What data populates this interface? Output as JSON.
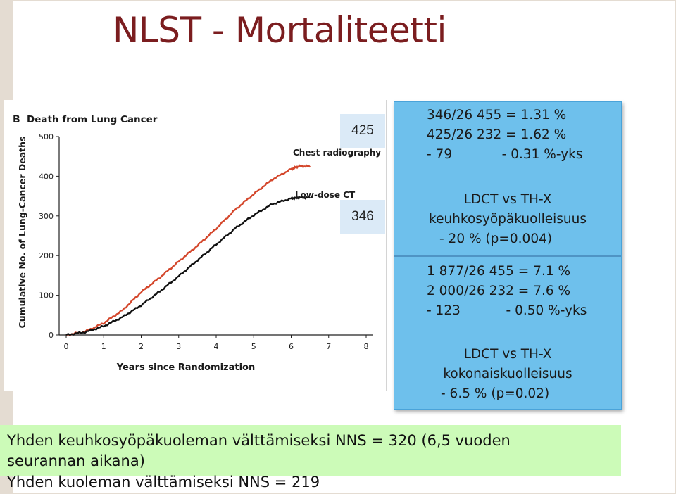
{
  "slide": {
    "title": "NLST - Mortaliteetti"
  },
  "chart": {
    "panel_letter": "B",
    "panel_title": "Death from Lung Cancer",
    "ylabel": "Cumulative No. of Lung-Cancer Deaths",
    "xlabel": "Years since Randomization",
    "yticks": [
      "0",
      "100",
      "200",
      "300",
      "400",
      "500"
    ],
    "xticks": [
      "0",
      "1",
      "2",
      "3",
      "4",
      "5",
      "6",
      "7",
      "8"
    ],
    "series_labels": [
      "Chest radiography",
      "Low-dose CT"
    ],
    "colors": {
      "chest_radiography": "#d4472c",
      "low_dose_ct": "#111111"
    }
  },
  "chart_data": {
    "type": "line",
    "title": "Death from Lung Cancer",
    "xlabel": "Years since Randomization",
    "ylabel": "Cumulative No. of Lung-Cancer Deaths",
    "xlim": [
      0,
      8
    ],
    "ylim": [
      0,
      500
    ],
    "legend": "end-of-line labels",
    "series": [
      {
        "name": "Chest radiography",
        "x": [
          0,
          0.5,
          1,
          1.5,
          2,
          2.5,
          3,
          3.5,
          4,
          4.5,
          5,
          5.5,
          6,
          6.2,
          6.5
        ],
        "y": [
          0,
          8,
          30,
          62,
          108,
          145,
          185,
          225,
          268,
          315,
          355,
          392,
          418,
          425,
          425
        ]
      },
      {
        "name": "Low-dose CT",
        "x": [
          0,
          0.5,
          1,
          1.5,
          2,
          2.5,
          3,
          3.5,
          4,
          4.5,
          5,
          5.5,
          6,
          6.2,
          6.5
        ],
        "y": [
          0,
          7,
          22,
          45,
          75,
          110,
          148,
          188,
          228,
          268,
          302,
          330,
          344,
          346,
          346
        ]
      }
    ]
  },
  "counts": {
    "chest": "425",
    "ldct": "346"
  },
  "stats": {
    "lc_line1": "346/26 455 = 1.31 %",
    "lc_line2": "425/26 232 = 1.62 %",
    "lc_line3": "- 79            - 0.31 %-yks",
    "lc_title1": "LDCT vs TH-X",
    "lc_title2": "keuhkosyöpäkuolleisuus",
    "lc_result": "- 20 % (p=0.004)",
    "all_line1": "1 877/26 455 = 7.1 %",
    "all_line2": "2 000/26 232 = 7.6 %",
    "all_line3": "- 123           - 0.50 %-yks",
    "all_title1": "LDCT vs TH-X",
    "all_title2": "kokonaiskuolleisuus",
    "all_result": "- 6.5 % (p=0.02)"
  },
  "nns": {
    "line1": "Yhden keuhkosyöpäkuoleman välttämiseksi NNS = 320 (6,5 vuoden",
    "line2": "seurannan aikana)",
    "line3": "Yhden kuoleman välttämiseksi NNS = 219"
  }
}
